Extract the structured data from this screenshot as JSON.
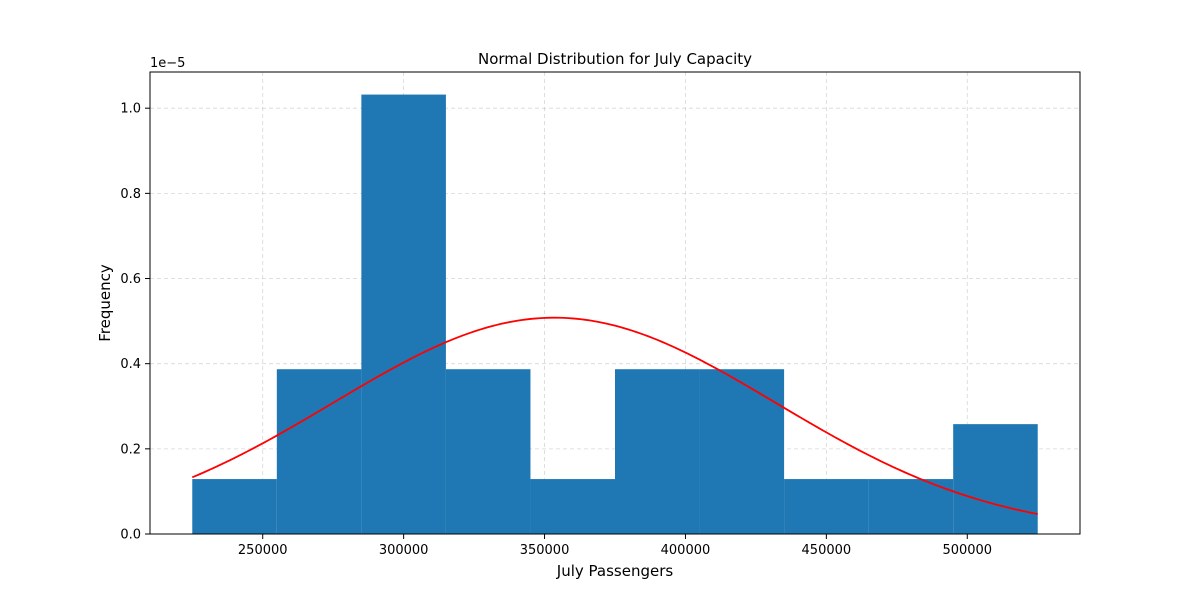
{
  "chart_data": {
    "type": "bar",
    "title": "Normal Distribution for July Capacity",
    "xlabel": "July Passengers",
    "ylabel": "Frequency",
    "y_offset_label": "1e−5",
    "y_scale": 1e-05,
    "xlim": [
      210000,
      540000
    ],
    "ylim": [
      0,
      1.085
    ],
    "grid": true,
    "x_ticks": [
      250000,
      300000,
      350000,
      400000,
      450000,
      500000
    ],
    "y_ticks": [
      0.0,
      0.2,
      0.4,
      0.6,
      0.8,
      1.0
    ],
    "x_tick_labels": [
      "250000",
      "300000",
      "350000",
      "400000",
      "450000",
      "500000"
    ],
    "y_tick_labels": [
      "0.0",
      "0.2",
      "0.4",
      "0.6",
      "0.8",
      "1.0"
    ],
    "histogram": {
      "name": "July Passengers histogram",
      "color": "#1f77b4",
      "bin_edges": [
        225000,
        255000,
        285000,
        315000,
        345000,
        375000,
        405000,
        435000,
        465000,
        495000,
        525000
      ],
      "values": [
        0.129,
        0.387,
        1.032,
        0.387,
        0.129,
        0.387,
        0.387,
        0.129,
        0.129,
        0.258
      ]
    },
    "fit_curve": {
      "name": "Normal fit",
      "color": "#ff0000",
      "mean": 353500,
      "std": 78500,
      "peak": 0.508,
      "x_range": [
        225000,
        525000
      ]
    }
  }
}
